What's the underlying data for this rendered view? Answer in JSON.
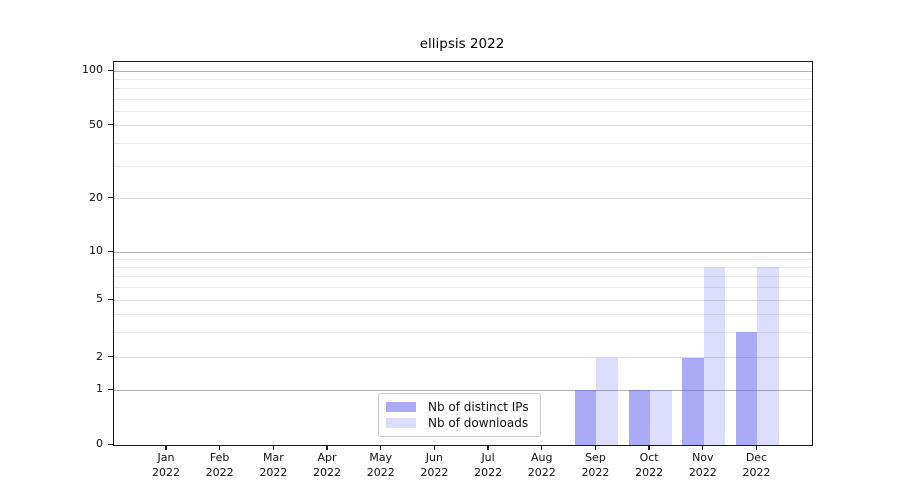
{
  "chart_data": {
    "type": "bar",
    "title": "ellipsis 2022",
    "categories": [
      "Jan",
      "Feb",
      "Mar",
      "Apr",
      "May",
      "Jun",
      "Jul",
      "Aug",
      "Sep",
      "Oct",
      "Nov",
      "Dec"
    ],
    "x_tick_line2": "2022",
    "series": [
      {
        "name": "Nb of distinct IPs",
        "values": [
          0,
          0,
          0,
          0,
          0,
          0,
          0,
          0,
          1,
          1,
          2,
          3
        ],
        "color": "rgba(85,85,240,0.5)"
      },
      {
        "name": "Nb of downloads",
        "values": [
          0,
          0,
          0,
          0,
          0,
          0,
          0,
          0,
          2,
          1,
          8,
          8
        ],
        "color": "rgba(85,85,240,0.2)"
      }
    ],
    "yaxis": {
      "scale": "log above 1, linear 0-1",
      "tick_labels": [
        0,
        1,
        2,
        5,
        10,
        20,
        50,
        100
      ],
      "major_gridlines": [
        1,
        10,
        100
      ],
      "labeled_minor_gridlines": [
        2,
        5,
        20,
        50
      ],
      "unlabeled_minor_gridlines": [
        3,
        4,
        6,
        7,
        8,
        9,
        30,
        40,
        60,
        70,
        80,
        90
      ],
      "ylim": [
        0,
        110
      ]
    },
    "legend": {
      "entries": [
        "Nb of distinct IPs",
        "Nb of downloads"
      ],
      "position": "lower center"
    },
    "grid": true
  },
  "colors": {
    "bar_distinct_ips": "rgba(85,85,240,0.5)",
    "bar_downloads": "rgba(85,85,240,0.2)",
    "grid_major": "#b2b2b2",
    "grid_labeled_minor": "#dcdcdc",
    "grid_minor": "#eaeaea",
    "spine": "#1a1a1a",
    "background": "#ffffff",
    "text": "#111111"
  }
}
